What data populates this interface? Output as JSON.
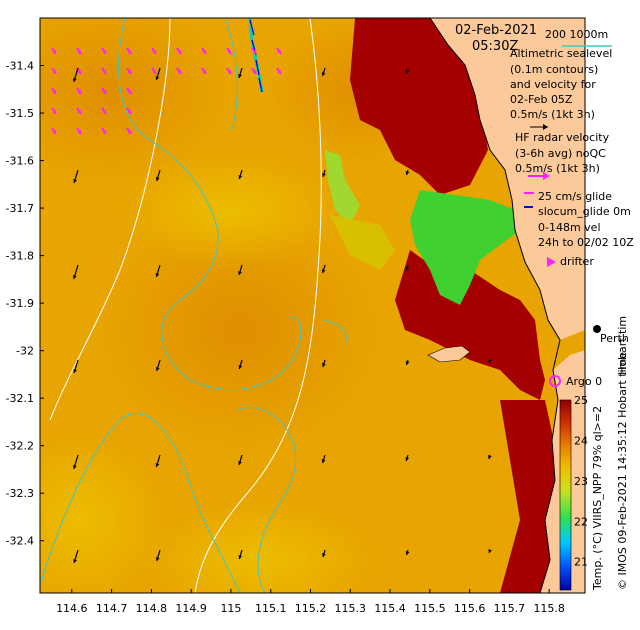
{
  "title": {
    "date": "02-Feb-2021",
    "time": "05:30Z"
  },
  "scale_bar": {
    "label": "200  1000m"
  },
  "legend": {
    "sealevel": [
      "Altimetric sealevel",
      "(0.1m contours)",
      "and velocity for",
      "02-Feb 05Z",
      "0.5m/s (1kt 3h)"
    ],
    "hf_radar": [
      "HF radar velocity",
      "(3-6h avg) noQC",
      "0.5m/s (1kt 3h)"
    ],
    "glider": [
      "25 cm/s glide",
      "slocum_glide 0m",
      "0-148m vel",
      "24h to 02/02 10Z"
    ],
    "drifter": "drifter",
    "argo": "Argo 0"
  },
  "city": "Perth",
  "side_label": "Hobart tim",
  "credit": "© IMOS 09-Feb-2021 14:35:12 Hobart time",
  "colorbar": {
    "title": "Temp. (°C) VIIRS_NPP 79% ql>=2",
    "ticks": [
      "25",
      "24",
      "23",
      "22",
      "21"
    ],
    "min": 20.3,
    "max": 25
  },
  "axes": {
    "x_ticks": [
      "114.6",
      "114.7",
      "114.8",
      "114.9",
      "115",
      "115.1",
      "115.2",
      "115.3",
      "115.4",
      "115.5",
      "115.6",
      "115.7",
      "115.8"
    ],
    "x_values": [
      114.6,
      114.7,
      114.8,
      114.9,
      115.0,
      115.1,
      115.2,
      115.3,
      115.4,
      115.5,
      115.6,
      115.7,
      115.8
    ],
    "y_ticks": [
      "-31.4",
      "-31.5",
      "-31.6",
      "-31.7",
      "-31.8",
      "-31.9",
      "-32",
      "-32.1",
      "-32.2",
      "-32.3",
      "-32.4"
    ],
    "y_values": [
      -31.4,
      -31.5,
      -31.6,
      -31.7,
      -31.8,
      -31.9,
      -32.0,
      -32.1,
      -32.2,
      -32.3,
      -32.4
    ],
    "x_range": [
      114.52,
      115.89
    ],
    "y_range": [
      -32.51,
      -31.3
    ]
  },
  "colors": {
    "ocean_warm": "#e8a000",
    "ocean_mid": "#e0b000",
    "hot": "#a00000",
    "land": "#fcc99a",
    "contour": "#40c8c0",
    "isobath": "#ffffff",
    "arrow": "#000000",
    "hf_arrow": "#ff20ff",
    "glider": "#0000ff"
  }
}
